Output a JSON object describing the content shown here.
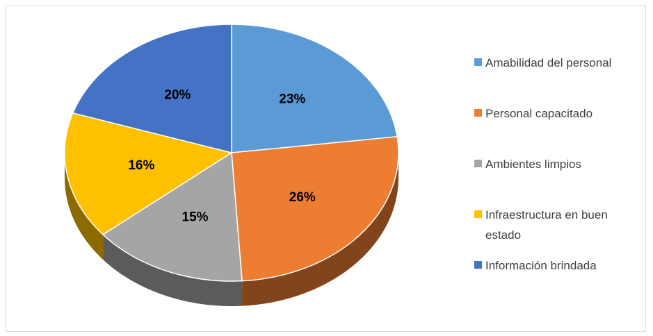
{
  "chart_data": {
    "type": "pie",
    "categories": [
      "Amabilidad del personal",
      "Personal capacitado",
      "Ambientes limpios",
      "Infraestructura en buen estado",
      "Información brindada"
    ],
    "values": [
      23,
      26,
      15,
      16,
      20
    ],
    "value_labels": [
      "23%",
      "26%",
      "15%",
      "16%",
      "20%"
    ],
    "colors": [
      "#5b9bd5",
      "#ed7d31",
      "#a5a5a5",
      "#ffc000",
      "#4472c4"
    ],
    "legend": "right"
  }
}
